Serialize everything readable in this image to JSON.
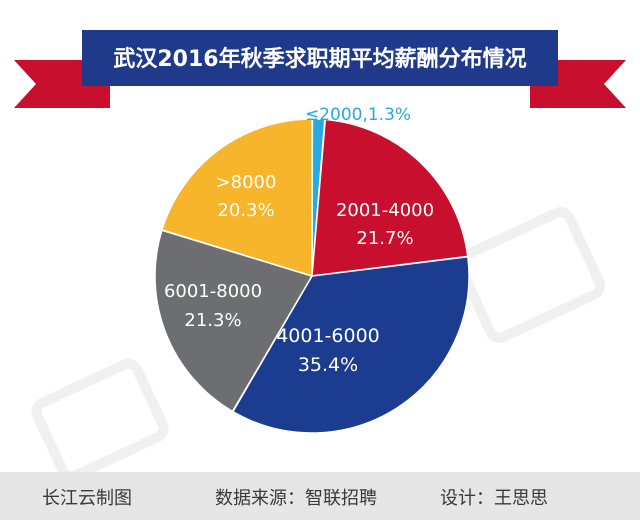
{
  "chart_data": {
    "type": "pie",
    "title": "武汉2016年秋季求职期平均薪酬分布情况",
    "slices": [
      {
        "label": "≤2000",
        "value": 1.3,
        "display_value": "1.3%",
        "color": "#2aa8e0",
        "text_color": "#2aa8e0"
      },
      {
        "label": "2001-4000",
        "value": 21.7,
        "display_value": "21.7%",
        "color": "#c8102e",
        "text_color": "#ffffff"
      },
      {
        "label": "4001-6000",
        "value": 35.4,
        "display_value": "35.4%",
        "color": "#1c3d8f",
        "text_color": "#ffffff"
      },
      {
        "label": "6001-8000",
        "value": 21.3,
        "display_value": "21.3%",
        "color": "#6d6e71",
        "text_color": "#ffffff"
      },
      {
        "label": ">8000",
        "value": 20.3,
        "display_value": "20.3%",
        "color": "#f7b52b",
        "text_color": "#ffffff"
      }
    ],
    "legend": "none"
  },
  "footer": {
    "credit": "长江云制图",
    "source": "数据来源：智联招聘",
    "designer": "设计：王思思"
  },
  "colors": {
    "banner": "#1f3a8a",
    "ribbon": "#c8102e",
    "footer_bg": "#e6e6e6"
  }
}
